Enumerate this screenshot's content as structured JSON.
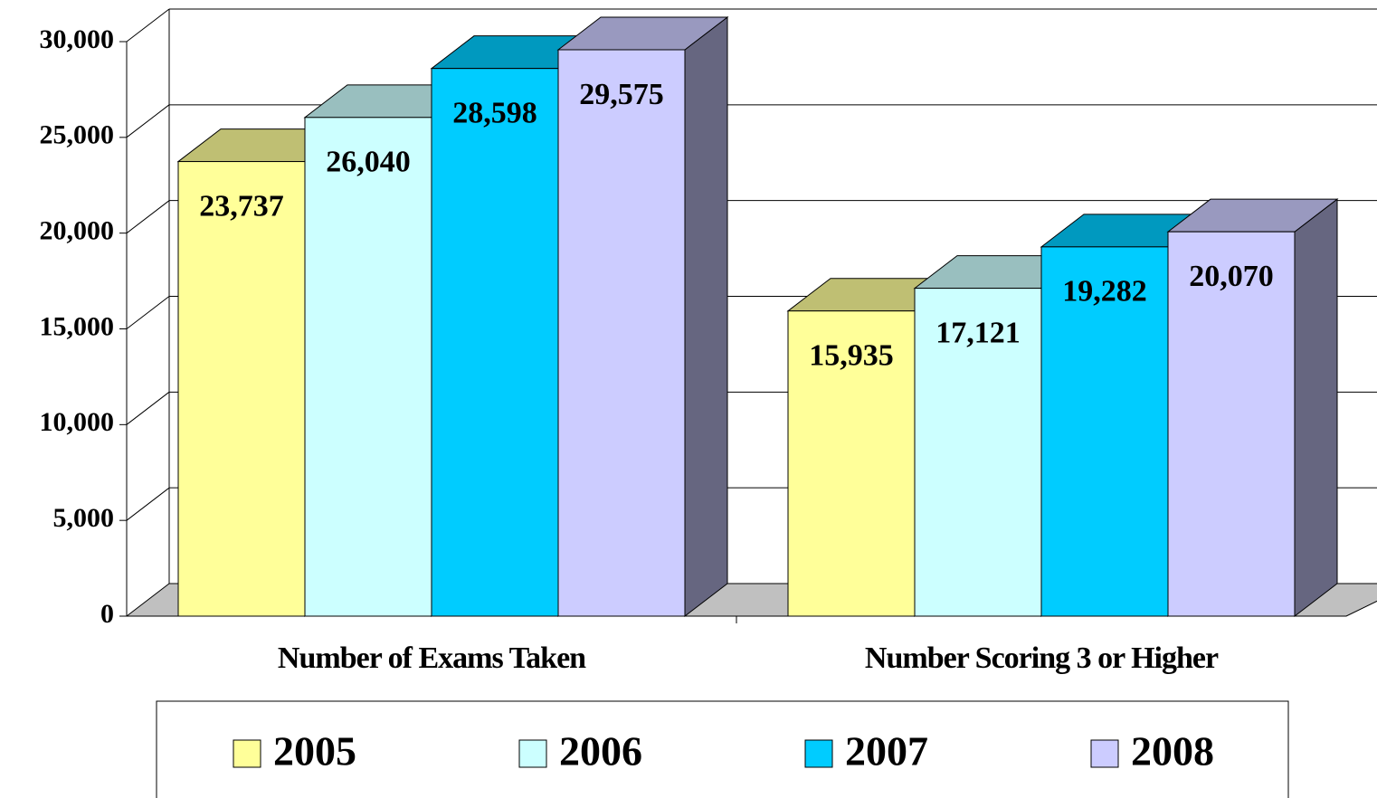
{
  "chart_data": {
    "type": "bar3d",
    "categories": [
      "Number of Exams Taken",
      "Number Scoring 3 or Higher"
    ],
    "series": [
      {
        "name": "2005",
        "color": "#ffff99",
        "values": [
          23737,
          15935
        ],
        "value_labels": [
          "23,737",
          "15,935"
        ]
      },
      {
        "name": "2006",
        "color": "#ccffff",
        "values": [
          26040,
          17121
        ],
        "value_labels": [
          "26,040",
          "17,121"
        ]
      },
      {
        "name": "2007",
        "color": "#00ccff",
        "values": [
          28598,
          19282
        ],
        "value_labels": [
          "28,598",
          "19,282"
        ]
      },
      {
        "name": "2008",
        "color": "#ccccff",
        "values": [
          29575,
          20070
        ],
        "value_labels": [
          "29,575",
          "20,070"
        ]
      }
    ],
    "ylim": [
      0,
      30000
    ],
    "yticks": [
      0,
      {
        "value": 5000,
        "label": "5,000"
      },
      {
        "value": 10000,
        "label": "10,000"
      },
      {
        "value": 15000,
        "label": "15,000"
      },
      {
        "value": 20000,
        "label": "20,000"
      },
      {
        "value": 25000,
        "label": "25,000"
      },
      {
        "value": 30000,
        "label": "30,000"
      }
    ],
    "grid": true,
    "legend": "bottom"
  }
}
